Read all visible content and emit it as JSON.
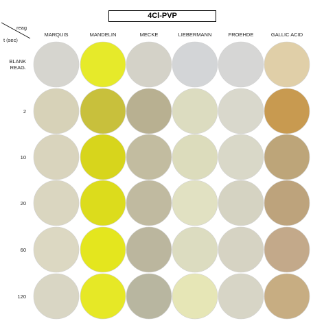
{
  "title": "4Cl-PVP",
  "corner": {
    "reagent_label": "reag",
    "time_label": "t (sec)"
  },
  "columns": [
    "MARQUIS",
    "MANDELIN",
    "MECKE",
    "LIEBERMANN",
    "FROEHDE",
    "GALLIC ACID"
  ],
  "rows": [
    "BLANK REAG.",
    "2",
    "10",
    "20",
    "60",
    "120"
  ]
}
